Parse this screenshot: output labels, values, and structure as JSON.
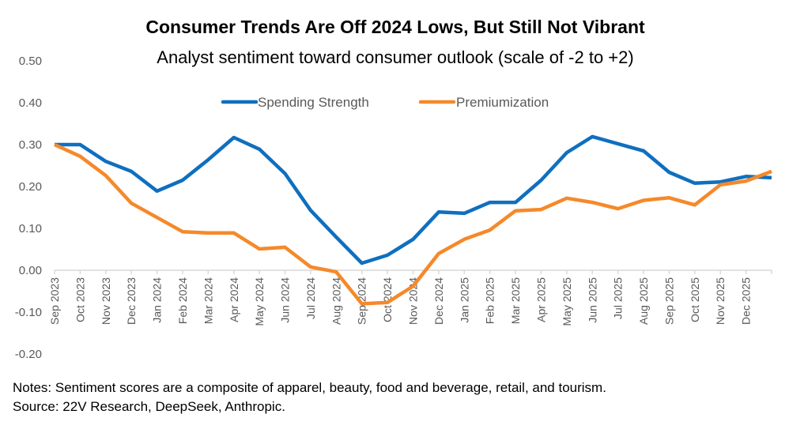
{
  "chart_data": {
    "type": "line",
    "title": "Consumer Trends Are Off 2024 Lows, But Still Not Vibrant",
    "subtitle": "Analyst sentiment toward consumer outlook (scale of -2 to +2)",
    "xlabel": "",
    "ylabel": "",
    "ylim": [
      -0.2,
      0.5
    ],
    "yticks": [
      "0.50",
      "0.40",
      "0.30",
      "0.20",
      "0.10",
      "0.00",
      "-0.10",
      "-0.20"
    ],
    "ytick_values": [
      0.5,
      0.4,
      0.3,
      0.2,
      0.1,
      0.0,
      -0.1,
      -0.2
    ],
    "grid": false,
    "legend_position": "top-center",
    "categories": [
      "Sep 2023",
      "Oct 2023",
      "Nov 2023",
      "Dec 2023",
      "Jan 2024",
      "Feb 2024",
      "Mar 2024",
      "Apr 2024",
      "May 2024",
      "Jun 2024",
      "Jul 2024",
      "Aug 2024",
      "Sep 2024",
      "Oct 2024",
      "Nov 2024",
      "Dec 2024",
      "Jan 2025",
      "Feb 2025",
      "Mar 2025",
      "Apr 2025",
      "May 2025",
      "Jun 2025",
      "Jul 2025",
      "Aug 2025",
      "Sep 2025",
      "Oct 2025",
      "Nov 2025",
      "Dec 2025",
      ""
    ],
    "series": [
      {
        "name": "Spending Strength",
        "color": "#0F6FBF",
        "values": [
          0.3,
          0.3,
          0.26,
          0.236,
          0.189,
          0.215,
          0.264,
          0.317,
          0.289,
          0.231,
          0.143,
          0.079,
          0.017,
          0.036,
          0.074,
          0.139,
          0.136,
          0.162,
          0.162,
          0.215,
          0.281,
          0.319,
          0.302,
          0.285,
          0.234,
          0.208,
          0.211,
          0.224,
          0.221
        ]
      },
      {
        "name": "Premiumization",
        "color": "#F5892A",
        "values": [
          0.3,
          0.272,
          0.226,
          0.16,
          0.126,
          0.092,
          0.089,
          0.089,
          0.051,
          0.055,
          0.008,
          -0.004,
          -0.08,
          -0.077,
          -0.038,
          0.04,
          0.074,
          0.096,
          0.142,
          0.145,
          0.172,
          0.162,
          0.147,
          0.167,
          0.173,
          0.156,
          0.204,
          0.213,
          0.236
        ]
      }
    ]
  },
  "notes": {
    "line1": "Notes: Sentiment scores are a composite of apparel, beauty, food and beverage, retail, and tourism.",
    "line2": "Source: 22V Research, DeepSeek, Anthropic."
  }
}
